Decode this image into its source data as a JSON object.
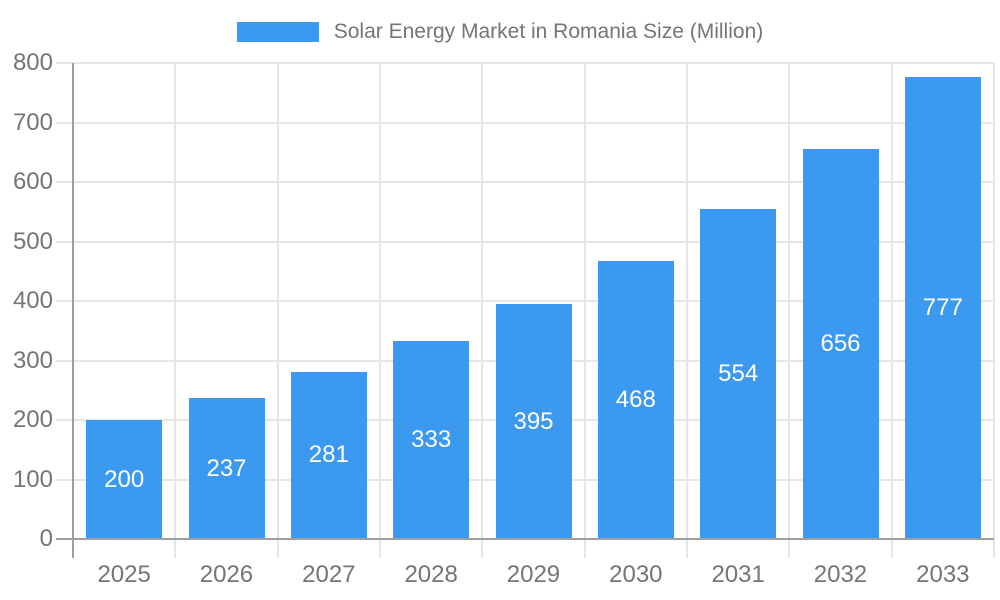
{
  "legend": {
    "series_label": "Solar Energy Market in Romania Size (Million)"
  },
  "chart_data": {
    "type": "bar",
    "title": "Solar Energy Market in Romania Size (Million)",
    "categories": [
      "2025",
      "2026",
      "2027",
      "2028",
      "2029",
      "2030",
      "2031",
      "2032",
      "2033"
    ],
    "series": [
      {
        "name": "Solar Energy Market in Romania Size (Million)",
        "values": [
          200,
          237,
          281,
          333,
          395,
          468,
          554,
          656,
          777
        ]
      }
    ],
    "value_labels": [
      "200",
      "237",
      "281",
      "333",
      "395",
      "468",
      "554",
      "656",
      "777"
    ],
    "xlabel": "",
    "ylabel": "",
    "ylim": [
      0,
      800
    ],
    "ytick_step": 100,
    "ytick_labels": [
      "0",
      "100",
      "200",
      "300",
      "400",
      "500",
      "600",
      "700",
      "800"
    ],
    "grid": true,
    "legend_position": "top",
    "value_labels_position": "center-inside-bar",
    "colors": {
      "bar": "#3C99F0",
      "axis_line": "#9E9E9E",
      "grid_line": "#E6E6E6",
      "label_text": "#757575",
      "value_label_text": "#FFFFFF",
      "background": "#FFFFFF"
    }
  }
}
